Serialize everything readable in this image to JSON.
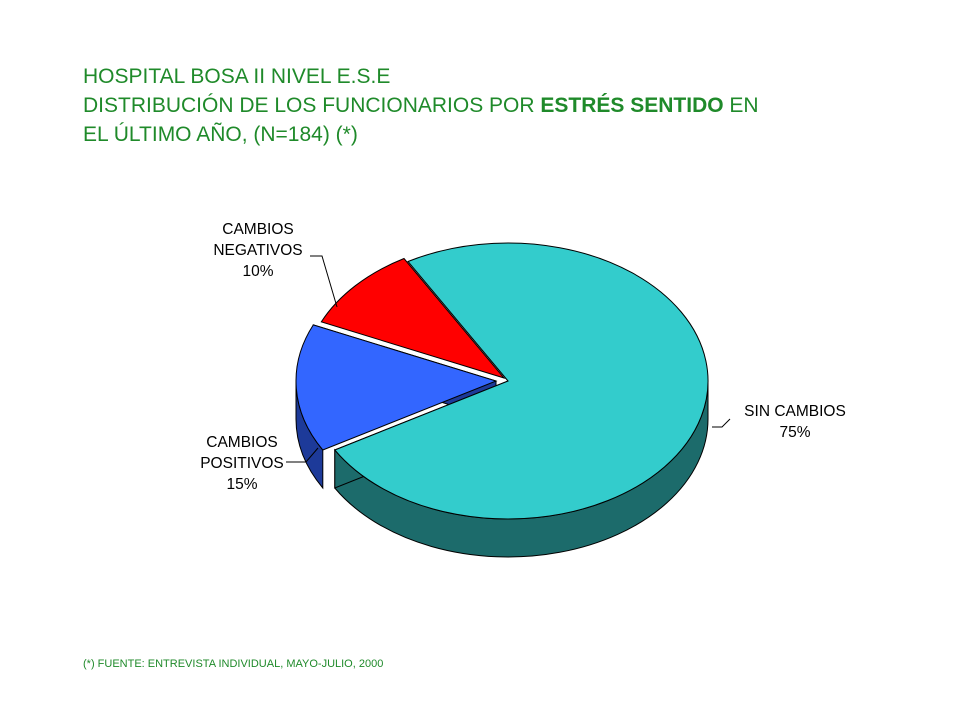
{
  "title": {
    "line1": "HOSPITAL BOSA II NIVEL E.S.E",
    "line2_pre": "DISTRIBUCIÓN DE LOS FUNCIONARIOS POR ",
    "line2_bold": "ESTRÉS SENTIDO",
    "line2_post": " EN",
    "line3": "EL ÚLTIMO  AÑO,  (N=184) (*)"
  },
  "chart_data": {
    "type": "pie",
    "slices": [
      {
        "label": [
          "SIN CAMBIOS",
          "75%"
        ],
        "value": 75,
        "color": "#33cccc",
        "side_color": "#1c6b6b"
      },
      {
        "label": [
          "CAMBIOS",
          "POSITIVOS",
          "15%"
        ],
        "value": 15,
        "color": "#3366ff",
        "side_color": "#1d3a99"
      },
      {
        "label": [
          "CAMBIOS",
          "NEGATIVOS",
          "10%"
        ],
        "value": 10,
        "color": "#ff0000",
        "side_color": "#8f0000"
      }
    ]
  },
  "source": "(*) FUENTE: ENTREVISTA  INDIVIDUAL,  MAYO-JULIO, 2000"
}
